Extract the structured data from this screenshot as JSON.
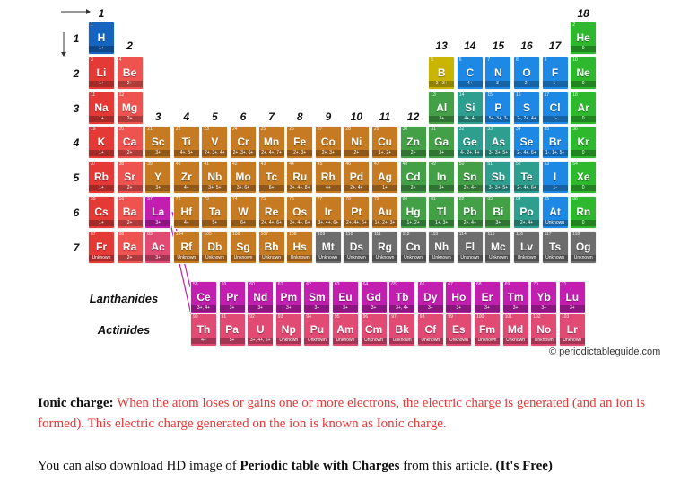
{
  "groups": [
    "1",
    "2",
    "3",
    "4",
    "5",
    "6",
    "7",
    "8",
    "9",
    "10",
    "11",
    "12",
    "13",
    "14",
    "15",
    "16",
    "17",
    "18"
  ],
  "periods": [
    "1",
    "2",
    "3",
    "4",
    "5",
    "6",
    "7"
  ],
  "series_labels": {
    "lanthanides": "Lanthanides",
    "actinides": "Actinides"
  },
  "credit": "© periodictableguide.com",
  "colors": {
    "hydrogen": "#1565c0",
    "alkali": "#e53935",
    "alkaline": "#ef5350",
    "transition": "#c67b22",
    "post_transition": "#43a047",
    "metalloid": "#2e9e8f",
    "nonmetal": "#1e88e5",
    "halogen": "#1e88e5",
    "noble": "#2eb82e",
    "lanthanide": "#c21fb0",
    "actinide": "#e14a73",
    "unknown": "#6d6d6d",
    "boron_yellow": "#c9b400"
  },
  "elements": [
    {
      "n": "1",
      "s": "H",
      "c": "1+",
      "g": 1,
      "p": 1,
      "t": "hydrogen"
    },
    {
      "n": "2",
      "s": "He",
      "c": "0",
      "g": 18,
      "p": 1,
      "t": "noble"
    },
    {
      "n": "3",
      "s": "Li",
      "c": "1+",
      "g": 1,
      "p": 2,
      "t": "alkali"
    },
    {
      "n": "4",
      "s": "Be",
      "c": "2+",
      "g": 2,
      "p": 2,
      "t": "alkaline"
    },
    {
      "n": "5",
      "s": "B",
      "c": "3-, 3+",
      "g": 13,
      "p": 2,
      "t": "boron_yellow"
    },
    {
      "n": "6",
      "s": "C",
      "c": "4+",
      "g": 14,
      "p": 2,
      "t": "nonmetal"
    },
    {
      "n": "7",
      "s": "N",
      "c": "3-",
      "g": 15,
      "p": 2,
      "t": "nonmetal"
    },
    {
      "n": "8",
      "s": "O",
      "c": "2-",
      "g": 16,
      "p": 2,
      "t": "nonmetal"
    },
    {
      "n": "9",
      "s": "F",
      "c": "1-",
      "g": 17,
      "p": 2,
      "t": "halogen"
    },
    {
      "n": "10",
      "s": "Ne",
      "c": "0",
      "g": 18,
      "p": 2,
      "t": "noble"
    },
    {
      "n": "11",
      "s": "Na",
      "c": "1+",
      "g": 1,
      "p": 3,
      "t": "alkali"
    },
    {
      "n": "12",
      "s": "Mg",
      "c": "2+",
      "g": 2,
      "p": 3,
      "t": "alkaline"
    },
    {
      "n": "13",
      "s": "Al",
      "c": "3+",
      "g": 13,
      "p": 3,
      "t": "post_transition"
    },
    {
      "n": "14",
      "s": "Si",
      "c": "4+, 4-",
      "g": 14,
      "p": 3,
      "t": "metalloid"
    },
    {
      "n": "15",
      "s": "P",
      "c": "5+, 3+, 3-",
      "g": 15,
      "p": 3,
      "t": "nonmetal"
    },
    {
      "n": "16",
      "s": "S",
      "c": "2-, 2+, 4+",
      "g": 16,
      "p": 3,
      "t": "nonmetal"
    },
    {
      "n": "17",
      "s": "Cl",
      "c": "1-",
      "g": 17,
      "p": 3,
      "t": "halogen"
    },
    {
      "n": "18",
      "s": "Ar",
      "c": "0",
      "g": 18,
      "p": 3,
      "t": "noble"
    },
    {
      "n": "19",
      "s": "K",
      "c": "1+",
      "g": 1,
      "p": 4,
      "t": "alkali"
    },
    {
      "n": "20",
      "s": "Ca",
      "c": "2+",
      "g": 2,
      "p": 4,
      "t": "alkaline"
    },
    {
      "n": "21",
      "s": "Sc",
      "c": "3+",
      "g": 3,
      "p": 4,
      "t": "transition"
    },
    {
      "n": "22",
      "s": "Ti",
      "c": "4+, 3+",
      "g": 4,
      "p": 4,
      "t": "transition"
    },
    {
      "n": "23",
      "s": "V",
      "c": "2+, 3+, 4+",
      "g": 5,
      "p": 4,
      "t": "transition"
    },
    {
      "n": "24",
      "s": "Cr",
      "c": "2+, 3+, 6+",
      "g": 6,
      "p": 4,
      "t": "transition"
    },
    {
      "n": "25",
      "s": "Mn",
      "c": "2+, 4+, 7+",
      "g": 7,
      "p": 4,
      "t": "transition"
    },
    {
      "n": "26",
      "s": "Fe",
      "c": "2+, 3+",
      "g": 8,
      "p": 4,
      "t": "transition"
    },
    {
      "n": "27",
      "s": "Co",
      "c": "2+, 3+",
      "g": 9,
      "p": 4,
      "t": "transition"
    },
    {
      "n": "28",
      "s": "Ni",
      "c": "2+",
      "g": 10,
      "p": 4,
      "t": "transition"
    },
    {
      "n": "29",
      "s": "Cu",
      "c": "1+, 2+",
      "g": 11,
      "p": 4,
      "t": "transition"
    },
    {
      "n": "30",
      "s": "Zn",
      "c": "2+",
      "g": 12,
      "p": 4,
      "t": "post_transition"
    },
    {
      "n": "31",
      "s": "Ga",
      "c": "3+",
      "g": 13,
      "p": 4,
      "t": "post_transition"
    },
    {
      "n": "32",
      "s": "Ge",
      "c": "4-, 2+, 4+",
      "g": 14,
      "p": 4,
      "t": "metalloid"
    },
    {
      "n": "33",
      "s": "As",
      "c": "3-, 3+, 5+",
      "g": 15,
      "p": 4,
      "t": "metalloid"
    },
    {
      "n": "34",
      "s": "Se",
      "c": "2-, 4+, 6+",
      "g": 16,
      "p": 4,
      "t": "nonmetal"
    },
    {
      "n": "35",
      "s": "Br",
      "c": "1-, 1+, 5+",
      "g": 17,
      "p": 4,
      "t": "halogen"
    },
    {
      "n": "36",
      "s": "Kr",
      "c": "0",
      "g": 18,
      "p": 4,
      "t": "noble"
    },
    {
      "n": "37",
      "s": "Rb",
      "c": "1+",
      "g": 1,
      "p": 5,
      "t": "alkali"
    },
    {
      "n": "38",
      "s": "Sr",
      "c": "2+",
      "g": 2,
      "p": 5,
      "t": "alkaline"
    },
    {
      "n": "39",
      "s": "Y",
      "c": "3+",
      "g": 3,
      "p": 5,
      "t": "transition"
    },
    {
      "n": "40",
      "s": "Zr",
      "c": "4+",
      "g": 4,
      "p": 5,
      "t": "transition"
    },
    {
      "n": "41",
      "s": "Nb",
      "c": "3+, 5+",
      "g": 5,
      "p": 5,
      "t": "transition"
    },
    {
      "n": "42",
      "s": "Mo",
      "c": "3+, 6+",
      "g": 6,
      "p": 5,
      "t": "transition"
    },
    {
      "n": "43",
      "s": "Tc",
      "c": "6+",
      "g": 7,
      "p": 5,
      "t": "transition"
    },
    {
      "n": "44",
      "s": "Ru",
      "c": "3+, 4+, 8+",
      "g": 8,
      "p": 5,
      "t": "transition"
    },
    {
      "n": "45",
      "s": "Rh",
      "c": "4+",
      "g": 9,
      "p": 5,
      "t": "transition"
    },
    {
      "n": "46",
      "s": "Pd",
      "c": "2+, 4+",
      "g": 10,
      "p": 5,
      "t": "transition"
    },
    {
      "n": "47",
      "s": "Ag",
      "c": "1+",
      "g": 11,
      "p": 5,
      "t": "transition"
    },
    {
      "n": "48",
      "s": "Cd",
      "c": "2+",
      "g": 12,
      "p": 5,
      "t": "post_transition"
    },
    {
      "n": "49",
      "s": "In",
      "c": "3+",
      "g": 13,
      "p": 5,
      "t": "post_transition"
    },
    {
      "n": "50",
      "s": "Sn",
      "c": "2+, 4+",
      "g": 14,
      "p": 5,
      "t": "post_transition"
    },
    {
      "n": "51",
      "s": "Sb",
      "c": "3-, 3+, 5+",
      "g": 15,
      "p": 5,
      "t": "metalloid"
    },
    {
      "n": "52",
      "s": "Te",
      "c": "2-, 4+, 6+",
      "g": 16,
      "p": 5,
      "t": "metalloid"
    },
    {
      "n": "53",
      "s": "I",
      "c": "1-",
      "g": 17,
      "p": 5,
      "t": "halogen"
    },
    {
      "n": "54",
      "s": "Xe",
      "c": "0",
      "g": 18,
      "p": 5,
      "t": "noble"
    },
    {
      "n": "55",
      "s": "Cs",
      "c": "1+",
      "g": 1,
      "p": 6,
      "t": "alkali"
    },
    {
      "n": "56",
      "s": "Ba",
      "c": "2+",
      "g": 2,
      "p": 6,
      "t": "alkaline"
    },
    {
      "n": "57",
      "s": "La",
      "c": "3+",
      "g": 3,
      "p": 6,
      "t": "lanthanide"
    },
    {
      "n": "72",
      "s": "Hf",
      "c": "4+",
      "g": 4,
      "p": 6,
      "t": "transition"
    },
    {
      "n": "73",
      "s": "Ta",
      "c": "5+",
      "g": 5,
      "p": 6,
      "t": "transition"
    },
    {
      "n": "74",
      "s": "W",
      "c": "6+",
      "g": 6,
      "p": 6,
      "t": "transition"
    },
    {
      "n": "75",
      "s": "Re",
      "c": "2+, 4+, 6+",
      "g": 7,
      "p": 6,
      "t": "transition"
    },
    {
      "n": "76",
      "s": "Os",
      "c": "3+, 4+, 6+",
      "g": 8,
      "p": 6,
      "t": "transition"
    },
    {
      "n": "77",
      "s": "Ir",
      "c": "3+, 4+, 6+",
      "g": 9,
      "p": 6,
      "t": "transition"
    },
    {
      "n": "78",
      "s": "Pt",
      "c": "2+, 4+, 6+",
      "g": 10,
      "p": 6,
      "t": "transition"
    },
    {
      "n": "79",
      "s": "Au",
      "c": "1+, 2+, 3+",
      "g": 11,
      "p": 6,
      "t": "transition"
    },
    {
      "n": "80",
      "s": "Hg",
      "c": "1+, 2+",
      "g": 12,
      "p": 6,
      "t": "post_transition"
    },
    {
      "n": "81",
      "s": "Tl",
      "c": "1+, 3+",
      "g": 13,
      "p": 6,
      "t": "post_transition"
    },
    {
      "n": "82",
      "s": "Pb",
      "c": "2+, 4+",
      "g": 14,
      "p": 6,
      "t": "post_transition"
    },
    {
      "n": "83",
      "s": "Bi",
      "c": "3+",
      "g": 15,
      "p": 6,
      "t": "post_transition"
    },
    {
      "n": "84",
      "s": "Po",
      "c": "2+, 4+",
      "g": 16,
      "p": 6,
      "t": "metalloid"
    },
    {
      "n": "85",
      "s": "At",
      "c": "Unknown",
      "g": 17,
      "p": 6,
      "t": "halogen"
    },
    {
      "n": "86",
      "s": "Rn",
      "c": "0",
      "g": 18,
      "p": 6,
      "t": "noble"
    },
    {
      "n": "87",
      "s": "Fr",
      "c": "Unknown",
      "g": 1,
      "p": 7,
      "t": "alkali"
    },
    {
      "n": "88",
      "s": "Ra",
      "c": "2+",
      "g": 2,
      "p": 7,
      "t": "alkaline"
    },
    {
      "n": "89",
      "s": "Ac",
      "c": "3+",
      "g": 3,
      "p": 7,
      "t": "actinide"
    },
    {
      "n": "104",
      "s": "Rf",
      "c": "Unknown",
      "g": 4,
      "p": 7,
      "t": "transition"
    },
    {
      "n": "105",
      "s": "Db",
      "c": "Unknown",
      "g": 5,
      "p": 7,
      "t": "transition"
    },
    {
      "n": "106",
      "s": "Sg",
      "c": "Unknown",
      "g": 6,
      "p": 7,
      "t": "transition"
    },
    {
      "n": "107",
      "s": "Bh",
      "c": "Unknown",
      "g": 7,
      "p": 7,
      "t": "transition"
    },
    {
      "n": "108",
      "s": "Hs",
      "c": "Unknown",
      "g": 8,
      "p": 7,
      "t": "transition"
    },
    {
      "n": "109",
      "s": "Mt",
      "c": "Unknown",
      "g": 9,
      "p": 7,
      "t": "unknown"
    },
    {
      "n": "110",
      "s": "Ds",
      "c": "Unknown",
      "g": 10,
      "p": 7,
      "t": "unknown"
    },
    {
      "n": "111",
      "s": "Rg",
      "c": "Unknown",
      "g": 11,
      "p": 7,
      "t": "unknown"
    },
    {
      "n": "112",
      "s": "Cn",
      "c": "Unknown",
      "g": 12,
      "p": 7,
      "t": "unknown"
    },
    {
      "n": "113",
      "s": "Nh",
      "c": "Unknown",
      "g": 13,
      "p": 7,
      "t": "unknown"
    },
    {
      "n": "114",
      "s": "Fl",
      "c": "Unknown",
      "g": 14,
      "p": 7,
      "t": "unknown"
    },
    {
      "n": "115",
      "s": "Mc",
      "c": "Unknown",
      "g": 15,
      "p": 7,
      "t": "unknown"
    },
    {
      "n": "116",
      "s": "Lv",
      "c": "Unknown",
      "g": 16,
      "p": 7,
      "t": "unknown"
    },
    {
      "n": "117",
      "s": "Ts",
      "c": "Unknown",
      "g": 17,
      "p": 7,
      "t": "unknown"
    },
    {
      "n": "118",
      "s": "Og",
      "c": "Unknown",
      "g": 18,
      "p": 7,
      "t": "unknown"
    }
  ],
  "lanthanides": [
    {
      "n": "58",
      "s": "Ce",
      "c": "3+, 4+"
    },
    {
      "n": "59",
      "s": "Pr",
      "c": "3+"
    },
    {
      "n": "60",
      "s": "Nd",
      "c": "3+"
    },
    {
      "n": "61",
      "s": "Pm",
      "c": "3+"
    },
    {
      "n": "62",
      "s": "Sm",
      "c": "3+"
    },
    {
      "n": "63",
      "s": "Eu",
      "c": "3+"
    },
    {
      "n": "64",
      "s": "Gd",
      "c": "3+"
    },
    {
      "n": "65",
      "s": "Tb",
      "c": "3+, 4+"
    },
    {
      "n": "66",
      "s": "Dy",
      "c": "3+"
    },
    {
      "n": "67",
      "s": "Ho",
      "c": "3+"
    },
    {
      "n": "68",
      "s": "Er",
      "c": "3+"
    },
    {
      "n": "69",
      "s": "Tm",
      "c": "3+"
    },
    {
      "n": "70",
      "s": "Yb",
      "c": "3+"
    },
    {
      "n": "71",
      "s": "Lu",
      "c": "3+"
    }
  ],
  "actinides": [
    {
      "n": "90",
      "s": "Th",
      "c": "4+"
    },
    {
      "n": "91",
      "s": "Pa",
      "c": "5+"
    },
    {
      "n": "92",
      "s": "U",
      "c": "3+, 4+, 6+"
    },
    {
      "n": "93",
      "s": "Np",
      "c": "Unknown"
    },
    {
      "n": "94",
      "s": "Pu",
      "c": "Unknown"
    },
    {
      "n": "95",
      "s": "Am",
      "c": "Unknown"
    },
    {
      "n": "96",
      "s": "Cm",
      "c": "Unknown"
    },
    {
      "n": "97",
      "s": "Bk",
      "c": "Unknown"
    },
    {
      "n": "98",
      "s": "Cf",
      "c": "Unknown"
    },
    {
      "n": "99",
      "s": "Es",
      "c": "Unknown"
    },
    {
      "n": "100",
      "s": "Fm",
      "c": "Unknown"
    },
    {
      "n": "101",
      "s": "Md",
      "c": "Unknown"
    },
    {
      "n": "102",
      "s": "No",
      "c": "Unknown"
    },
    {
      "n": "103",
      "s": "Lr",
      "c": "Unknown"
    }
  ],
  "text": {
    "def_label": "Ionic charge:",
    "def_body": "When the atom loses or gains one or more electrons, the electric charge is generated (and an ion is formed). This electric charge generated on the ion is known as Ionic charge.",
    "download_pre": "You can also download HD image of ",
    "download_bold": "Periodic table with Charges",
    "download_mid": " from this article. ",
    "download_free": "(It's Free)"
  }
}
